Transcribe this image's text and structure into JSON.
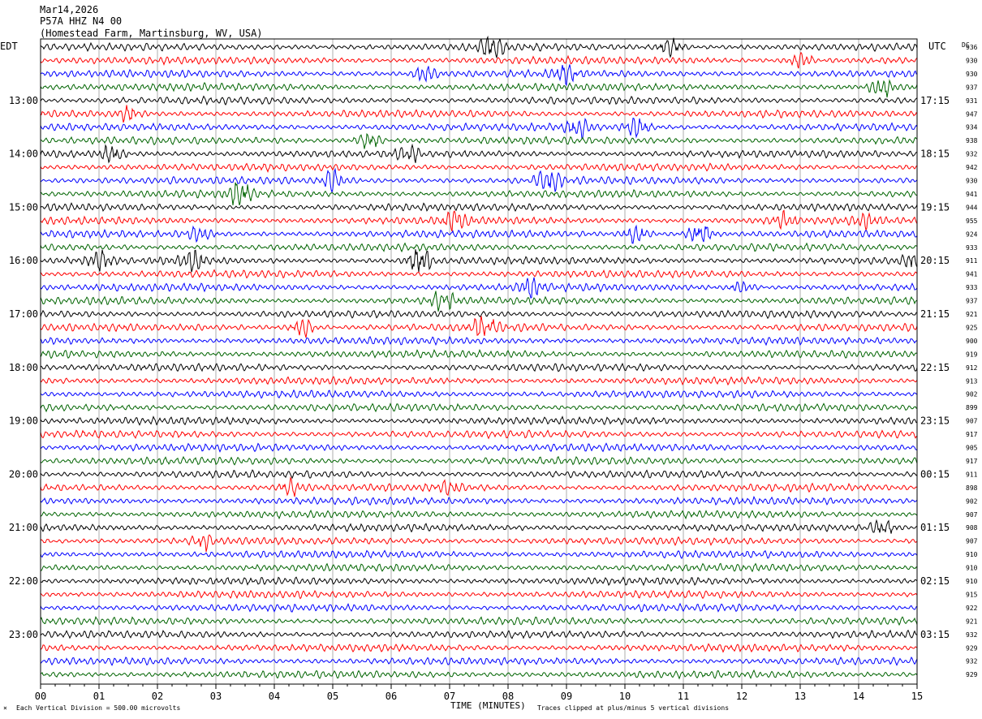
{
  "header": {
    "date": "Mar14,2026",
    "station": "P57A HHZ N4 00",
    "location": "(Homestead Farm, Martinsburg, WV, USA)"
  },
  "left_axis_label": "EDT",
  "right_axis_label": "UTC",
  "dc_label": "DC",
  "x_axis_title": "TIME (MINUTES)",
  "footer": {
    "scale_note": "Each Vertical Division =  500.00 microvolts",
    "clip_note": "Traces clipped at plus/minus 5 vertical divisions"
  },
  "colors": {
    "black": "#000000",
    "red": "#ff0000",
    "blue": "#0000ff",
    "green": "#006400"
  },
  "chart_data": {
    "type": "line",
    "title": "Mar14,2026",
    "xlabel": "TIME (MINUTES)",
    "xlim": [
      0,
      15
    ],
    "x_ticks": [
      "00",
      "01",
      "02",
      "03",
      "04",
      "05",
      "06",
      "07",
      "08",
      "09",
      "10",
      "11",
      "12",
      "13",
      "14",
      "15"
    ],
    "left_time_labels": [
      "13:00",
      "14:00",
      "15:00",
      "16:00",
      "17:00",
      "18:00",
      "19:00",
      "20:00",
      "21:00",
      "22:00",
      "23:00"
    ],
    "right_time_labels": [
      "17:15",
      "18:15",
      "19:15",
      "20:15",
      "21:15",
      "22:15",
      "23:15",
      "00:15",
      "01:15",
      "02:15",
      "03:15"
    ],
    "trace_color_cycle": [
      "black",
      "red",
      "blue",
      "green"
    ],
    "dc_offsets": [
      936,
      930,
      930,
      937,
      931,
      947,
      934,
      938,
      932,
      942,
      930,
      941,
      944,
      955,
      924,
      933,
      911,
      941,
      933,
      937,
      921,
      925,
      900,
      919,
      912,
      913,
      902,
      899,
      907,
      917,
      905,
      917,
      911,
      898,
      902,
      907,
      908,
      907,
      910,
      910,
      910,
      915,
      922,
      921,
      932,
      929,
      932,
      929
    ],
    "events": [
      {
        "trace": 0,
        "minute": 7.7,
        "amp": 3.0
      },
      {
        "trace": 0,
        "minute": 10.8,
        "amp": 2.0
      },
      {
        "trace": 1,
        "minute": 13.0,
        "amp": 1.8
      },
      {
        "trace": 2,
        "minute": 6.6,
        "amp": 1.8
      },
      {
        "trace": 2,
        "minute": 9.0,
        "amp": 2.0
      },
      {
        "trace": 3,
        "minute": 14.4,
        "amp": 2.0
      },
      {
        "trace": 5,
        "minute": 1.5,
        "amp": 1.5
      },
      {
        "trace": 6,
        "minute": 9.2,
        "amp": 2.2
      },
      {
        "trace": 6,
        "minute": 10.2,
        "amp": 1.8
      },
      {
        "trace": 7,
        "minute": 5.6,
        "amp": 2.0
      },
      {
        "trace": 8,
        "minute": 1.2,
        "amp": 1.8
      },
      {
        "trace": 8,
        "minute": 6.3,
        "amp": 1.5
      },
      {
        "trace": 10,
        "minute": 5.0,
        "amp": 2.2
      },
      {
        "trace": 10,
        "minute": 8.7,
        "amp": 3.0
      },
      {
        "trace": 11,
        "minute": 3.4,
        "amp": 3.0
      },
      {
        "trace": 13,
        "minute": 7.1,
        "amp": 2.0
      },
      {
        "trace": 13,
        "minute": 12.7,
        "amp": 1.5
      },
      {
        "trace": 13,
        "minute": 14.1,
        "amp": 1.5
      },
      {
        "trace": 14,
        "minute": 2.7,
        "amp": 2.0
      },
      {
        "trace": 14,
        "minute": 10.2,
        "amp": 1.8
      },
      {
        "trace": 14,
        "minute": 11.3,
        "amp": 2.5
      },
      {
        "trace": 16,
        "minute": 2.6,
        "amp": 2.5
      },
      {
        "trace": 16,
        "minute": 6.5,
        "amp": 3.0
      },
      {
        "trace": 16,
        "minute": 1.0,
        "amp": 2.0
      },
      {
        "trace": 16,
        "minute": 14.9,
        "amp": 1.5
      },
      {
        "trace": 18,
        "minute": 8.4,
        "amp": 2.0
      },
      {
        "trace": 18,
        "minute": 12.0,
        "amp": 1.5
      },
      {
        "trace": 19,
        "minute": 6.9,
        "amp": 2.0
      },
      {
        "trace": 21,
        "minute": 4.5,
        "amp": 2.0
      },
      {
        "trace": 21,
        "minute": 7.6,
        "amp": 2.5
      },
      {
        "trace": 33,
        "minute": 4.3,
        "amp": 1.5
      },
      {
        "trace": 33,
        "minute": 7.0,
        "amp": 1.5
      },
      {
        "trace": 36,
        "minute": 14.4,
        "amp": 1.5
      },
      {
        "trace": 37,
        "minute": 2.8,
        "amp": 1.5
      }
    ]
  }
}
